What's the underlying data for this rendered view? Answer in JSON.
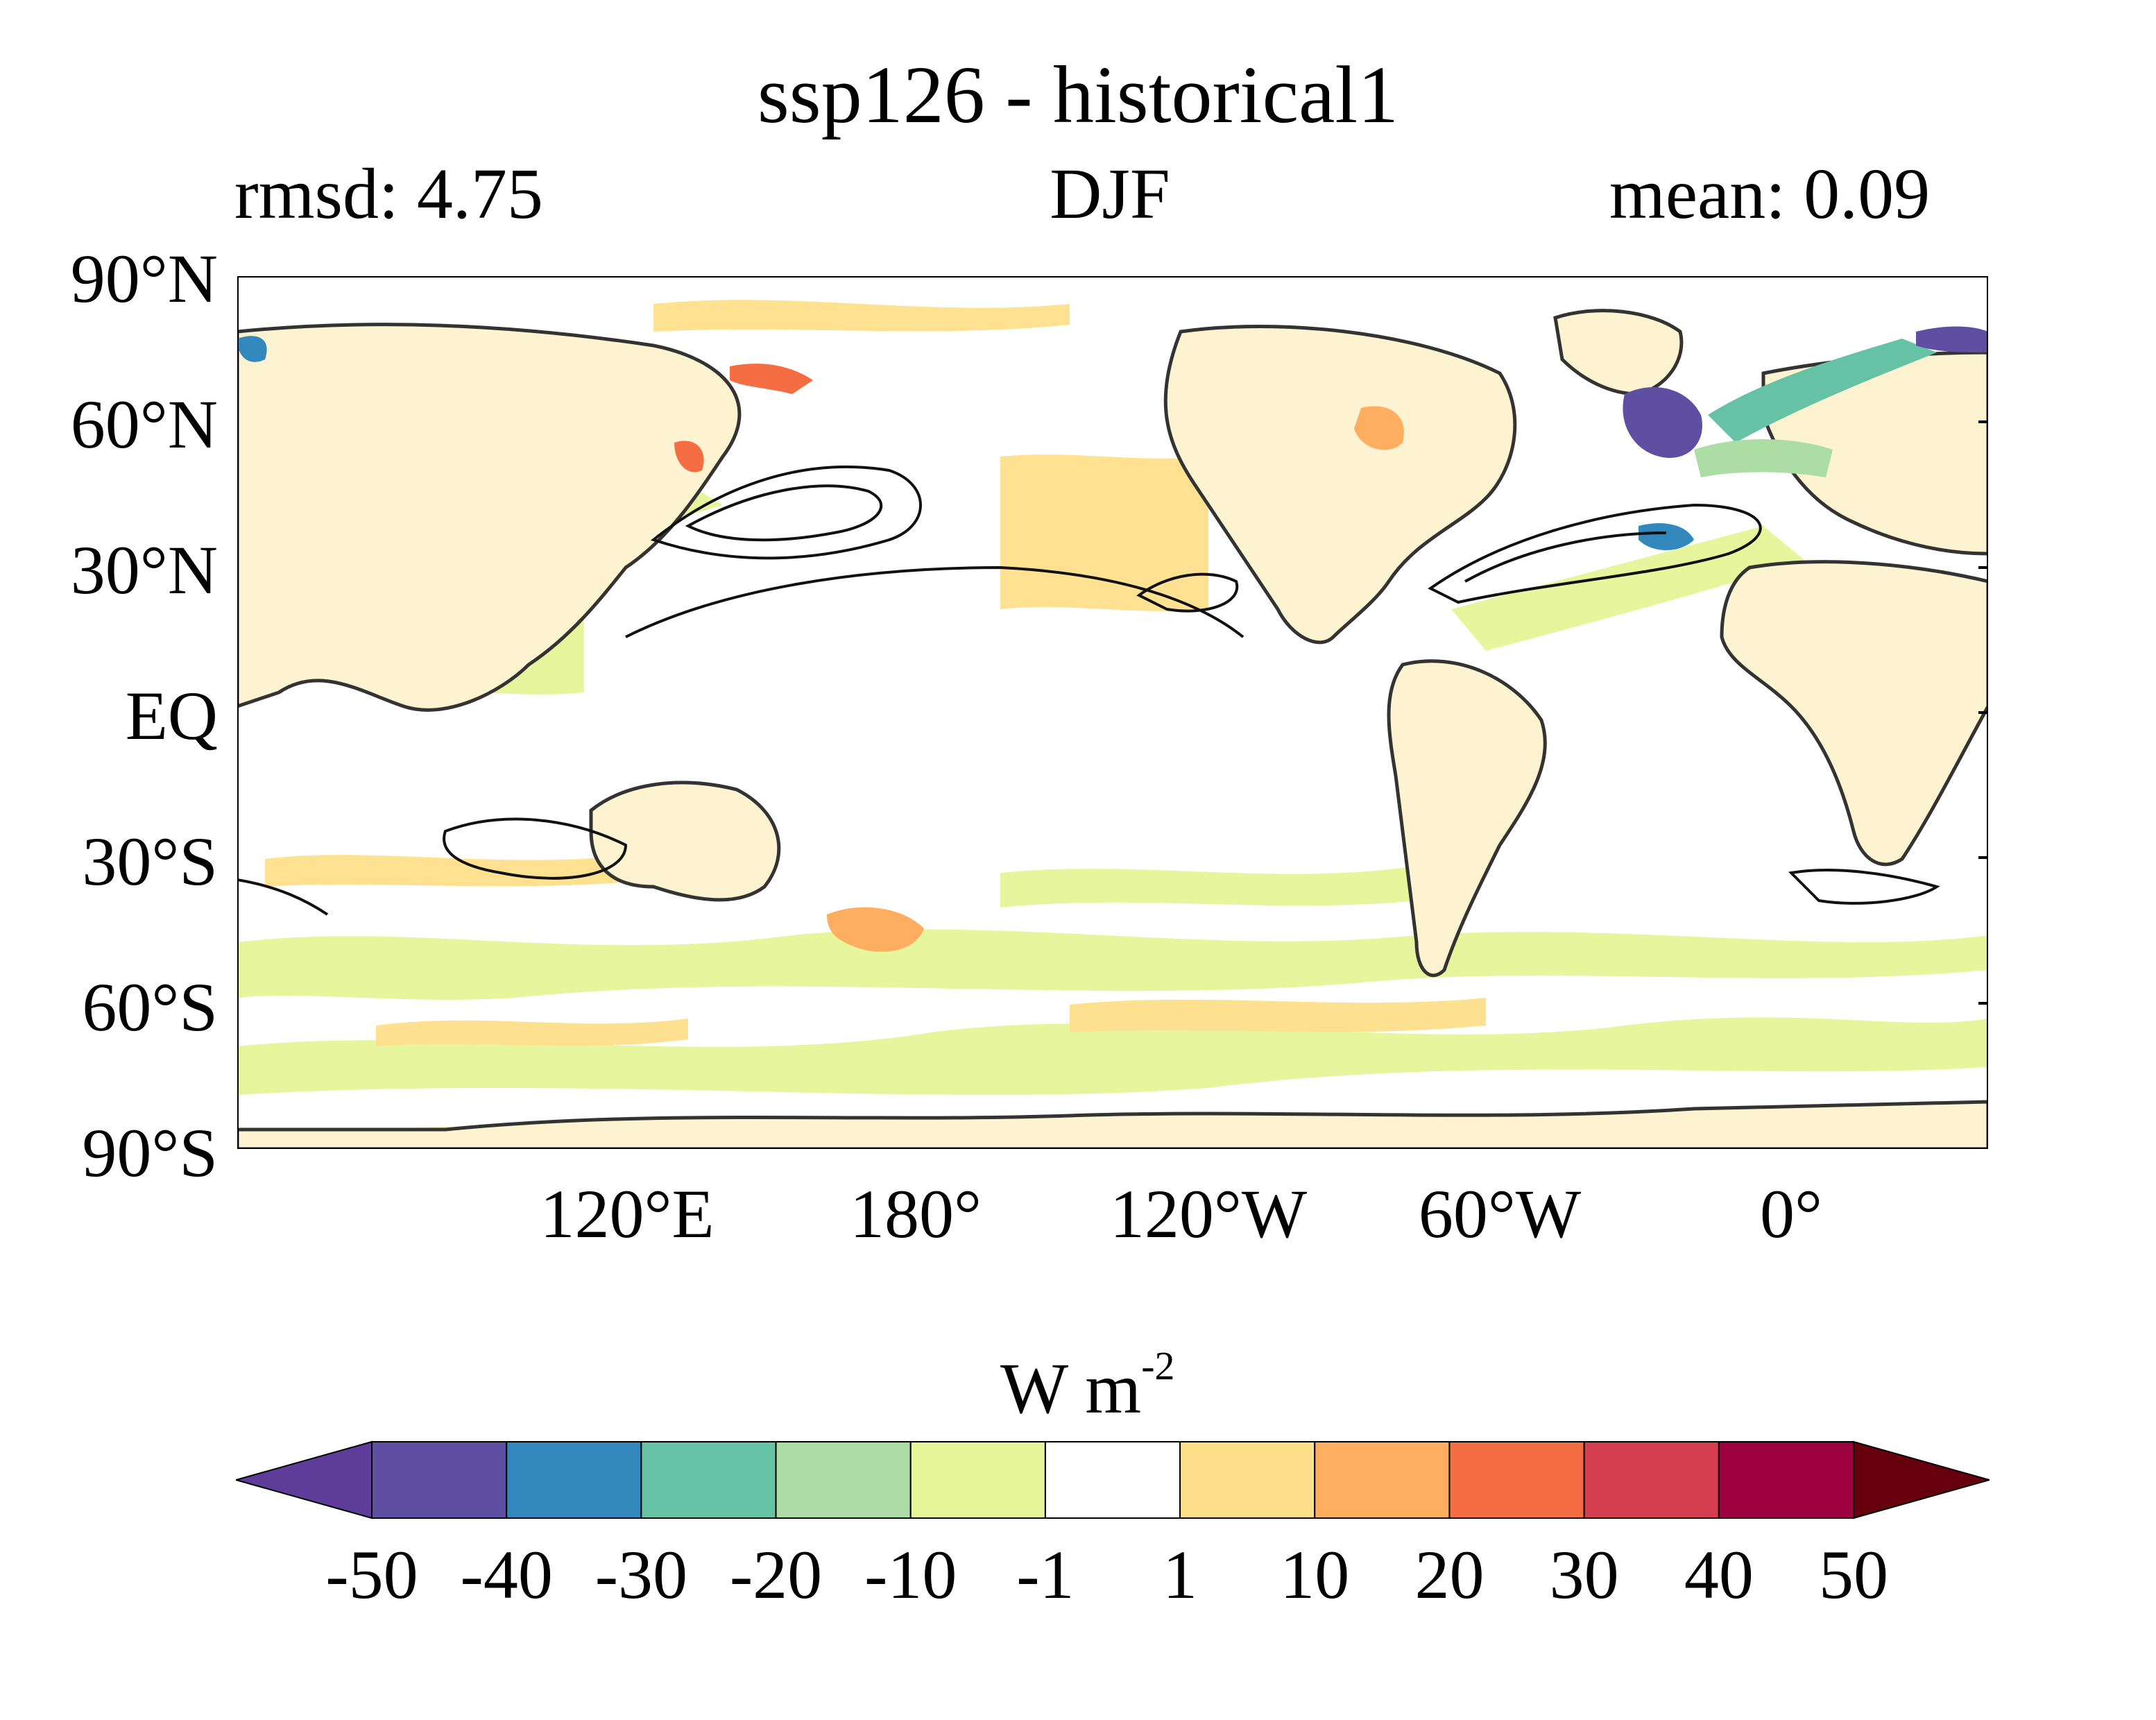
{
  "header": {
    "title": "ssp126 - historical1",
    "left": "rmsd: 4.75",
    "center": "DJF",
    "right": "mean: 0.09"
  },
  "axes": {
    "lat_labels": [
      "90°N",
      "60°N",
      "30°N",
      "EQ",
      "30°S",
      "60°S",
      "90°S"
    ],
    "lat_values": [
      90,
      60,
      30,
      0,
      -30,
      -60,
      -90
    ],
    "lon_labels": [
      "120°E",
      "180°",
      "120°W",
      "60°W",
      "0°"
    ],
    "lon_values": [
      120,
      180,
      240,
      300,
      360
    ],
    "lon_range": [
      40,
      400
    ],
    "lat_range": [
      -90,
      90
    ],
    "projection": "equirectangular, Pacific-centred"
  },
  "colorbar": {
    "unit_base": "W m",
    "unit_exp": "-2",
    "tick_labels": [
      "-50",
      "-40",
      "-30",
      "-20",
      "-10",
      "-1",
      "1",
      "10",
      "20",
      "30",
      "40",
      "50"
    ],
    "colors": [
      "#5e3c99",
      "#5e4fa2",
      "#3288bd",
      "#66c2a5",
      "#abdda4",
      "#e6f598",
      "#ffffff",
      "#fee08b",
      "#fdae61",
      "#f46d43",
      "#d53e4f",
      "#9e0142",
      "#67000d"
    ],
    "extend": "both"
  },
  "legend_colors": {
    "land": "#fdf3d0",
    "coast": "#333333",
    "contour": "#111111"
  }
}
